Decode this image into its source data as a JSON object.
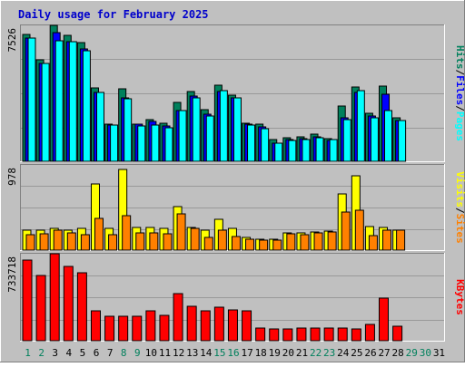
{
  "chart_data": [
    {
      "type": "bar",
      "title": "Daily usage for February 2025",
      "panel": "hits-files-pages",
      "ylabel_max": "7526",
      "ylim": [
        0,
        7526
      ],
      "grid": true,
      "categories": [
        "1",
        "2",
        "3",
        "4",
        "5",
        "6",
        "7",
        "8",
        "9",
        "10",
        "11",
        "12",
        "13",
        "14",
        "15",
        "16",
        "17",
        "18",
        "19",
        "20",
        "21",
        "22",
        "23",
        "24",
        "25",
        "26",
        "27",
        "28",
        "29",
        "30",
        "31"
      ],
      "weekend_days": [
        "1",
        "2",
        "8",
        "9",
        "15",
        "16",
        "22",
        "23",
        "29",
        "30"
      ],
      "series": [
        {
          "name": "Hits",
          "color": "#00805c",
          "values": [
            7000,
            5600,
            7526,
            6950,
            6550,
            4050,
            2050,
            4000,
            2050,
            2300,
            2100,
            3250,
            3850,
            2850,
            4200,
            3650,
            2100,
            2050,
            1200,
            1300,
            1350,
            1500,
            1250,
            3050,
            4100,
            2650,
            4150,
            2400,
            0,
            0,
            0
          ]
        },
        {
          "name": "Files",
          "color": "#0000ff",
          "values": [
            6800,
            5400,
            7100,
            6600,
            6200,
            3800,
            2000,
            3500,
            2050,
            2200,
            1950,
            2800,
            3600,
            2600,
            3850,
            3500,
            2050,
            1900,
            1000,
            1200,
            1250,
            1350,
            1150,
            2400,
            3800,
            2500,
            3700,
            2250,
            0,
            0,
            0
          ]
        },
        {
          "name": "Pages",
          "color": "#00ffff",
          "values": [
            6800,
            5400,
            6650,
            6600,
            6100,
            3800,
            2000,
            3450,
            1950,
            2000,
            1850,
            2800,
            3500,
            2500,
            3900,
            3500,
            2000,
            1800,
            1000,
            1150,
            1200,
            1300,
            1200,
            2300,
            3900,
            2400,
            2800,
            2250,
            0,
            0,
            0
          ]
        }
      ]
    },
    {
      "type": "bar",
      "panel": "visits-sites",
      "ylabel_max": "978",
      "ylim": [
        0,
        978
      ],
      "grid": true,
      "series": [
        {
          "name": "Visits",
          "color": "#ffff00",
          "values": [
            233,
            233,
            248,
            233,
            248,
            763,
            248,
            926,
            264,
            264,
            248,
            497,
            264,
            233,
            356,
            248,
            149,
            124,
            122,
            202,
            202,
            213,
            218,
            643,
            855,
            272,
            264,
            233,
            0,
            0,
            0
          ]
        },
        {
          "name": "Sites",
          "color": "#ff8000",
          "values": [
            175,
            190,
            233,
            198,
            175,
            365,
            175,
            395,
            201,
            198,
            190,
            415,
            248,
            145,
            233,
            151,
            124,
            111,
            111,
            185,
            178,
            202,
            213,
            432,
            455,
            162,
            233,
            227,
            0,
            0,
            0
          ]
        }
      ]
    },
    {
      "type": "bar",
      "panel": "kbytes",
      "ylabel_max": "733718",
      "ylim": [
        0,
        733718
      ],
      "grid": true,
      "series": [
        {
          "name": "KBytes",
          "color": "#ff0000",
          "values": [
            680000,
            550000,
            733718,
            630000,
            570000,
            250000,
            210000,
            210000,
            210000,
            250000,
            215000,
            395000,
            290000,
            250000,
            280000,
            260000,
            255000,
            105000,
            100000,
            100000,
            105000,
            105000,
            110000,
            110000,
            100000,
            140000,
            360000,
            125000,
            0,
            0,
            0
          ]
        }
      ]
    }
  ],
  "legend": {
    "top": [
      {
        "text": "Hits",
        "color": "#00805c"
      },
      {
        "text": "/",
        "color": "#000000"
      },
      {
        "text": "Files",
        "color": "#0000ff"
      },
      {
        "text": "/",
        "color": "#000000"
      },
      {
        "text": "Pages",
        "color": "#00ffff"
      }
    ],
    "middle": [
      {
        "text": "Visits",
        "color": "#ffff00"
      },
      {
        "text": "/",
        "color": "#000000"
      },
      {
        "text": "Sites",
        "color": "#ff8000"
      }
    ],
    "bottom": [
      {
        "text": "KBytes",
        "color": "#ff0000"
      }
    ]
  },
  "colors": {
    "frame_bg": "#c0c0c0",
    "plot_bg": "#c0c0c0",
    "grid": "#999999",
    "title": "#0000cc",
    "weekday_tick": "#000000",
    "weekend_tick": "#00805c"
  }
}
